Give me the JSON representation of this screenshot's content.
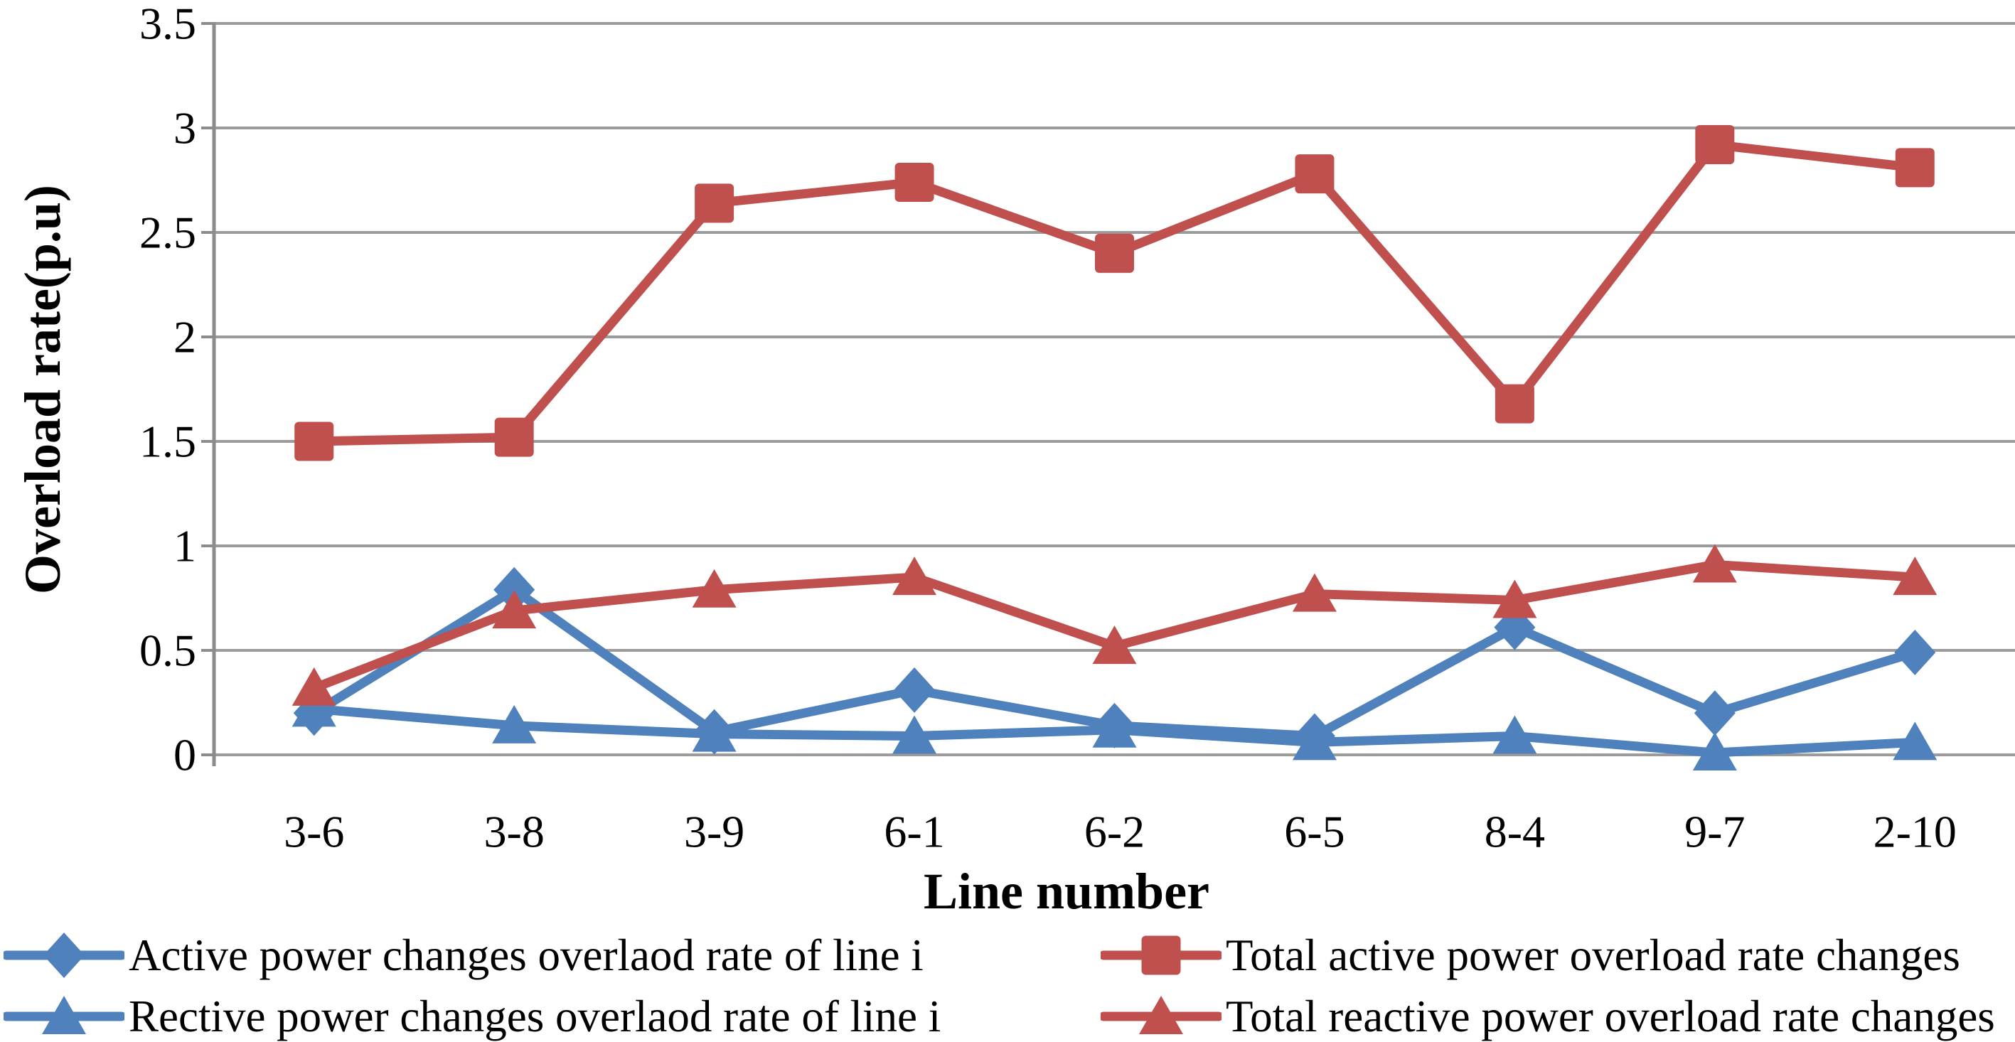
{
  "chart_data": {
    "type": "line",
    "title": "",
    "xlabel": "Line number",
    "ylabel": "Overload rate(p.u)",
    "categories": [
      "3-6",
      "3-8",
      "3-9",
      "6-1",
      "6-2",
      "6-5",
      "8-4",
      "9-7",
      "2-10"
    ],
    "y_ticks": [
      0,
      0.5,
      1,
      1.5,
      2,
      2.5,
      3,
      3.5
    ],
    "ylim": [
      0,
      3.5
    ],
    "grid": true,
    "legend_position": "bottom",
    "series": [
      {
        "name": "Active power changes overlaod rate of line i",
        "marker": "diamond",
        "color": "#4F81BD",
        "values": [
          0.2,
          0.79,
          0.11,
          0.31,
          0.14,
          0.09,
          0.61,
          0.2,
          0.49
        ]
      },
      {
        "name": "Rective power changes overlaod rate of line i",
        "marker": "triangle",
        "color": "#4F81BD",
        "values": [
          0.22,
          0.14,
          0.1,
          0.09,
          0.12,
          0.06,
          0.09,
          0.01,
          0.06
        ]
      },
      {
        "name": "Total active power overload rate changes",
        "marker": "square",
        "color": "#C0504D",
        "values": [
          1.5,
          1.52,
          2.64,
          2.74,
          2.4,
          2.78,
          1.68,
          2.92,
          2.81
        ]
      },
      {
        "name": "Total reactive power overload rate changes",
        "marker": "triangle",
        "color": "#C0504D",
        "values": [
          0.32,
          0.69,
          0.79,
          0.85,
          0.52,
          0.77,
          0.74,
          0.91,
          0.85
        ]
      }
    ],
    "legend_order": [
      0,
      2,
      1,
      3
    ],
    "colors": {
      "background": "#FFFFFF",
      "gridline": "#9B9B9B",
      "axis": "#8C8C8C",
      "text": "#000000"
    }
  }
}
